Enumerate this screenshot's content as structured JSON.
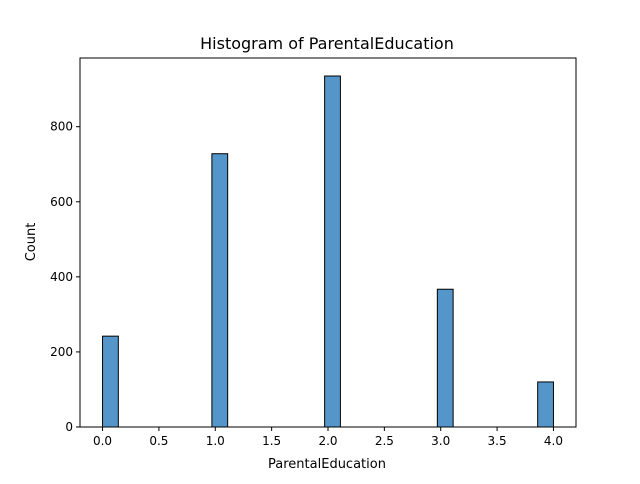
{
  "chart_data": {
    "type": "bar",
    "title": "Histogram of ParentalEducation",
    "xlabel": "ParentalEducation",
    "ylabel": "Count",
    "xlim": [
      -0.2,
      4.2
    ],
    "ylim": [
      0,
      983
    ],
    "x_ticks": [
      0.0,
      0.5,
      1.0,
      1.5,
      2.0,
      2.5,
      3.0,
      3.5,
      4.0
    ],
    "x_tick_labels": [
      "0.0",
      "0.5",
      "1.0",
      "1.5",
      "2.0",
      "2.5",
      "3.0",
      "3.5",
      "4.0"
    ],
    "y_ticks": [
      0,
      200,
      400,
      600,
      800
    ],
    "y_tick_labels": [
      "0",
      "200",
      "400",
      "600",
      "800"
    ],
    "bins": [
      {
        "x0": 0.0,
        "x1": 0.14,
        "count": 242
      },
      {
        "x0": 0.97,
        "x1": 1.11,
        "count": 728
      },
      {
        "x0": 1.97,
        "x1": 2.11,
        "count": 935
      },
      {
        "x0": 2.97,
        "x1": 3.11,
        "count": 367
      },
      {
        "x0": 3.86,
        "x1": 4.0,
        "count": 120
      }
    ],
    "bar_color": "#5496c9",
    "edge_color": "#000000",
    "grid": false,
    "legend": false
  }
}
